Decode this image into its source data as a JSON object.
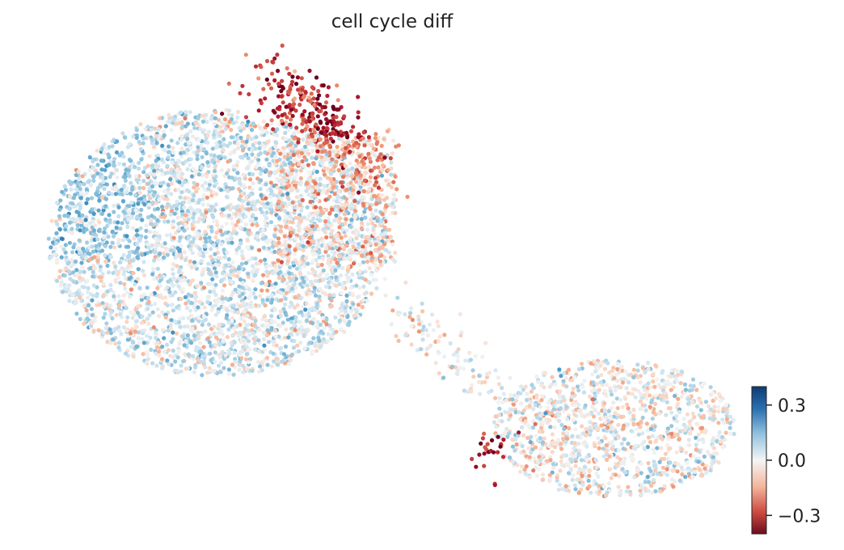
{
  "chart_data": {
    "type": "scatter",
    "title": "cell cycle diff",
    "xlabel": "",
    "ylabel": "",
    "grid": false,
    "colormap": "RdBu",
    "color_range": [
      -0.4,
      0.4
    ],
    "colorbar": {
      "ticks": [
        0.3,
        0.0,
        -0.3
      ],
      "tick_labels": [
        "0.3",
        "0.0",
        "−0.3"
      ],
      "placement": "right"
    },
    "clusters": [
      {
        "name": "large-left-cluster",
        "approx_points": 3800,
        "typical_value": 0.03
      },
      {
        "name": "top-red-tail",
        "approx_points": 350,
        "typical_value": -0.2
      },
      {
        "name": "bridge",
        "approx_points": 120,
        "typical_value": 0.0
      },
      {
        "name": "right-cluster",
        "approx_points": 1200,
        "typical_value": 0.0
      },
      {
        "name": "small-red-patch",
        "approx_points": 25,
        "typical_value": -0.35
      }
    ]
  }
}
